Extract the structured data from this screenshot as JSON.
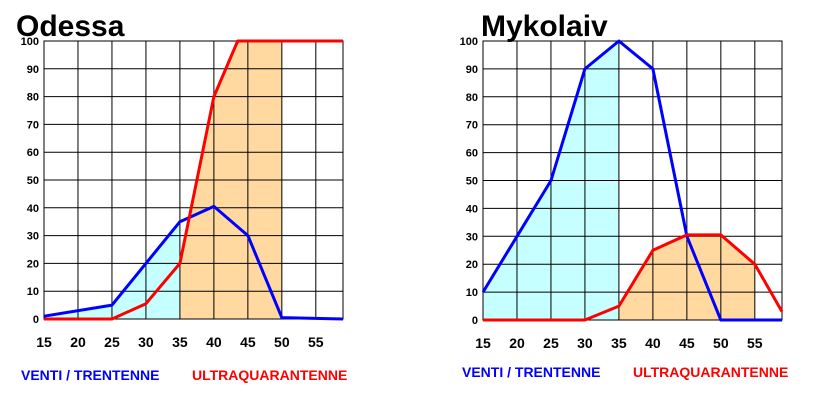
{
  "chart_data": [
    {
      "type": "line",
      "title": "Odessa",
      "x": [
        15,
        20,
        25,
        30,
        35,
        40,
        45,
        50,
        55
      ],
      "x_range": [
        15,
        59
      ],
      "ylim": [
        0,
        100
      ],
      "y_ticks": [
        0,
        10,
        20,
        30,
        40,
        50,
        60,
        70,
        80,
        90,
        100
      ],
      "grid": true,
      "series": [
        {
          "name": "VENTI / TRENTENNE",
          "color": "#0000ff",
          "fill": "#c6ffff",
          "points": [
            [
              15,
              1
            ],
            [
              25,
              5
            ],
            [
              30,
              20
            ],
            [
              35,
              35
            ],
            [
              40,
              40.5
            ],
            [
              45,
              30
            ],
            [
              50,
              0.5
            ],
            [
              59,
              0
            ]
          ]
        },
        {
          "name": "ULTRAQUARANTENNE",
          "color": "#ff0000",
          "fill": "#ffd9a0",
          "points": [
            [
              15,
              0
            ],
            [
              25,
              0
            ],
            [
              30,
              5.5
            ],
            [
              35,
              20
            ],
            [
              40,
              80
            ],
            [
              43.5,
              100
            ],
            [
              59,
              100
            ]
          ]
        }
      ]
    },
    {
      "type": "line",
      "title": "Mykolaiv",
      "x": [
        15,
        20,
        25,
        30,
        35,
        40,
        45,
        50,
        55
      ],
      "x_range": [
        15,
        59
      ],
      "ylim": [
        0,
        100
      ],
      "y_ticks": [
        0,
        10,
        20,
        30,
        40,
        50,
        60,
        70,
        80,
        90,
        100
      ],
      "grid": true,
      "series": [
        {
          "name": "VENTI / TRENTENNE",
          "color": "#0000ff",
          "fill": "#c6ffff",
          "points": [
            [
              15,
              10
            ],
            [
              20,
              30
            ],
            [
              25,
              50
            ],
            [
              30,
              90
            ],
            [
              35,
              100
            ],
            [
              40,
              90
            ],
            [
              45,
              30
            ],
            [
              50,
              0
            ],
            [
              59,
              0
            ]
          ]
        },
        {
          "name": "ULTRAQUARANTENNE",
          "color": "#ff0000",
          "fill": "#ffd9a0",
          "points": [
            [
              15,
              0
            ],
            [
              30,
              0
            ],
            [
              35,
              5
            ],
            [
              40,
              25
            ],
            [
              45,
              30.5
            ],
            [
              50,
              30.5
            ],
            [
              55,
              20
            ],
            [
              59,
              3
            ]
          ]
        }
      ]
    }
  ]
}
